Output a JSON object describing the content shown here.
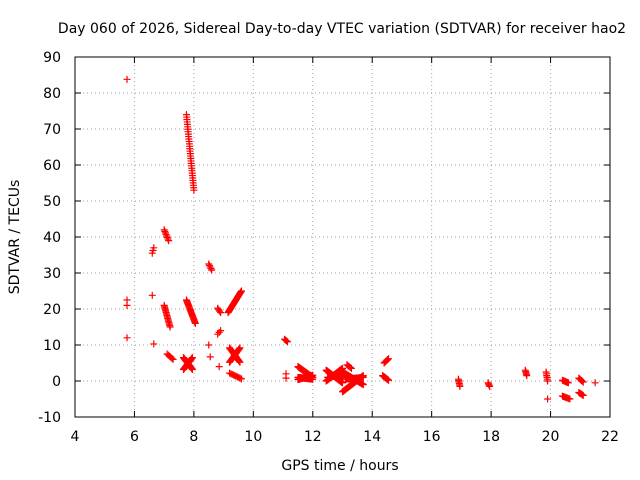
{
  "chart_data": {
    "type": "scatter",
    "title": "Day 060 of 2026, Sidereal Day-to-day VTEC variation (SDTVAR) for receiver hao2",
    "xlabel": "GPS time / hours",
    "ylabel": "SDTVAR / TECUs",
    "xlim": [
      4,
      22
    ],
    "ylim": [
      -10,
      90
    ],
    "xticks": [
      "4",
      "6",
      "8",
      "10",
      "12",
      "14",
      "16",
      "18",
      "20",
      "22"
    ],
    "yticks": [
      "-10",
      "0",
      "10",
      "20",
      "30",
      "40",
      "50",
      "60",
      "70",
      "80",
      "90"
    ],
    "grid": true,
    "marker": "plus",
    "color": "#ff0000",
    "series": [
      {
        "name": "SDTVAR",
        "segments": [
          {
            "x": [
              5.75,
              5.75
            ],
            "y": [
              83.8,
              83.8
            ],
            "n": 1
          },
          {
            "x": [
              5.75,
              5.75
            ],
            "y": [
              21.0,
              22.5
            ],
            "n": 2
          },
          {
            "x": [
              5.75,
              5.75
            ],
            "y": [
              12.0,
              12.0
            ],
            "n": 1
          },
          {
            "x": [
              6.6,
              6.65
            ],
            "y": [
              35.5,
              37.0
            ],
            "n": 3
          },
          {
            "x": [
              6.6,
              6.6
            ],
            "y": [
              23.8,
              23.8
            ],
            "n": 1
          },
          {
            "x": [
              6.65,
              6.65
            ],
            "y": [
              10.3,
              10.3
            ],
            "n": 1
          },
          {
            "x": [
              7.0,
              7.15
            ],
            "y": [
              42.0,
              39.0
            ],
            "n": 8
          },
          {
            "x": [
              7.0,
              7.2
            ],
            "y": [
              21.0,
              15.0
            ],
            "n": 16
          },
          {
            "x": [
              7.1,
              7.3
            ],
            "y": [
              7.5,
              6.0
            ],
            "n": 6
          },
          {
            "x": [
              7.75,
              8.0
            ],
            "y": [
              74.0,
              53.0
            ],
            "n": 32
          },
          {
            "x": [
              7.75,
              8.05
            ],
            "y": [
              22.5,
              16.0
            ],
            "n": 22
          },
          {
            "x": [
              7.65,
              7.95
            ],
            "y": [
              6.5,
              3.2
            ],
            "n": 18
          },
          {
            "x": [
              7.65,
              7.95
            ],
            "y": [
              3.2,
              6.5
            ],
            "n": 18
          },
          {
            "x": [
              8.5,
              8.6
            ],
            "y": [
              32.5,
              30.8
            ],
            "n": 5
          },
          {
            "x": [
              8.5,
              8.5
            ],
            "y": [
              10.0,
              10.0
            ],
            "n": 1
          },
          {
            "x": [
              8.55,
              8.55
            ],
            "y": [
              6.7,
              6.7
            ],
            "n": 1
          },
          {
            "x": [
              8.8,
              8.9
            ],
            "y": [
              20.2,
              19.0
            ],
            "n": 4
          },
          {
            "x": [
              8.8,
              8.9
            ],
            "y": [
              13.0,
              14.0
            ],
            "n": 3
          },
          {
            "x": [
              8.85,
              8.85
            ],
            "y": [
              4.0,
              4.0
            ],
            "n": 1
          },
          {
            "x": [
              9.15,
              9.6
            ],
            "y": [
              19.0,
              25.0
            ],
            "n": 28
          },
          {
            "x": [
              9.2,
              9.55
            ],
            "y": [
              9.2,
              5.2
            ],
            "n": 16
          },
          {
            "x": [
              9.2,
              9.55
            ],
            "y": [
              5.2,
              9.2
            ],
            "n": 16
          },
          {
            "x": [
              9.2,
              9.6
            ],
            "y": [
              2.2,
              0.6
            ],
            "n": 10
          },
          {
            "x": [
              11.05,
              11.15
            ],
            "y": [
              11.6,
              10.9
            ],
            "n": 4
          },
          {
            "x": [
              11.1,
              11.1
            ],
            "y": [
              2.0,
              0.8
            ],
            "n": 2
          },
          {
            "x": [
              11.5,
              12.0
            ],
            "y": [
              4.0,
              1.0
            ],
            "n": 40
          },
          {
            "x": [
              11.5,
              12.0
            ],
            "y": [
              1.0,
              0.5
            ],
            "n": 40
          },
          {
            "x": [
              11.5,
              12.0
            ],
            "y": [
              0.4,
              1.6
            ],
            "n": 30
          },
          {
            "x": [
              12.45,
              13.0
            ],
            "y": [
              0.0,
              3.5
            ],
            "n": 40
          },
          {
            "x": [
              12.45,
              13.0
            ],
            "y": [
              3.0,
              -0.5
            ],
            "n": 40
          },
          {
            "x": [
              12.5,
              13.1
            ],
            "y": [
              1.0,
              1.8
            ],
            "n": 30
          },
          {
            "x": [
              13.0,
              13.7
            ],
            "y": [
              -3.0,
              1.5
            ],
            "n": 40
          },
          {
            "x": [
              13.0,
              13.7
            ],
            "y": [
              2.5,
              -1.0
            ],
            "n": 40
          },
          {
            "x": [
              13.1,
              13.7
            ],
            "y": [
              0.5,
              1.0
            ],
            "n": 30
          },
          {
            "x": [
              13.15,
              13.3
            ],
            "y": [
              4.5,
              3.5
            ],
            "n": 5
          },
          {
            "x": [
              14.4,
              14.55
            ],
            "y": [
              5.0,
              6.2
            ],
            "n": 6
          },
          {
            "x": [
              14.35,
              14.55
            ],
            "y": [
              1.5,
              0.2
            ],
            "n": 10
          },
          {
            "x": [
              16.9,
              16.95
            ],
            "y": [
              0.5,
              -1.5
            ],
            "n": 6
          },
          {
            "x": [
              17.9,
              17.95
            ],
            "y": [
              -0.5,
              -1.5
            ],
            "n": 4
          },
          {
            "x": [
              19.15,
              19.2
            ],
            "y": [
              3.0,
              1.5
            ],
            "n": 5
          },
          {
            "x": [
              19.85,
              19.9
            ],
            "y": [
              2.5,
              0.0
            ],
            "n": 6
          },
          {
            "x": [
              19.9,
              19.9
            ],
            "y": [
              -5.0,
              -5.0
            ],
            "n": 1
          },
          {
            "x": [
              20.4,
              20.6
            ],
            "y": [
              0.2,
              -0.5
            ],
            "n": 8
          },
          {
            "x": [
              20.4,
              20.65
            ],
            "y": [
              -4.2,
              -5.0
            ],
            "n": 8
          },
          {
            "x": [
              20.95,
              21.1
            ],
            "y": [
              0.8,
              -0.3
            ],
            "n": 6
          },
          {
            "x": [
              20.95,
              21.1
            ],
            "y": [
              -3.2,
              -4.0
            ],
            "n": 6
          },
          {
            "x": [
              21.5,
              21.5
            ],
            "y": [
              -0.5,
              -0.5
            ],
            "n": 1
          }
        ]
      }
    ]
  }
}
